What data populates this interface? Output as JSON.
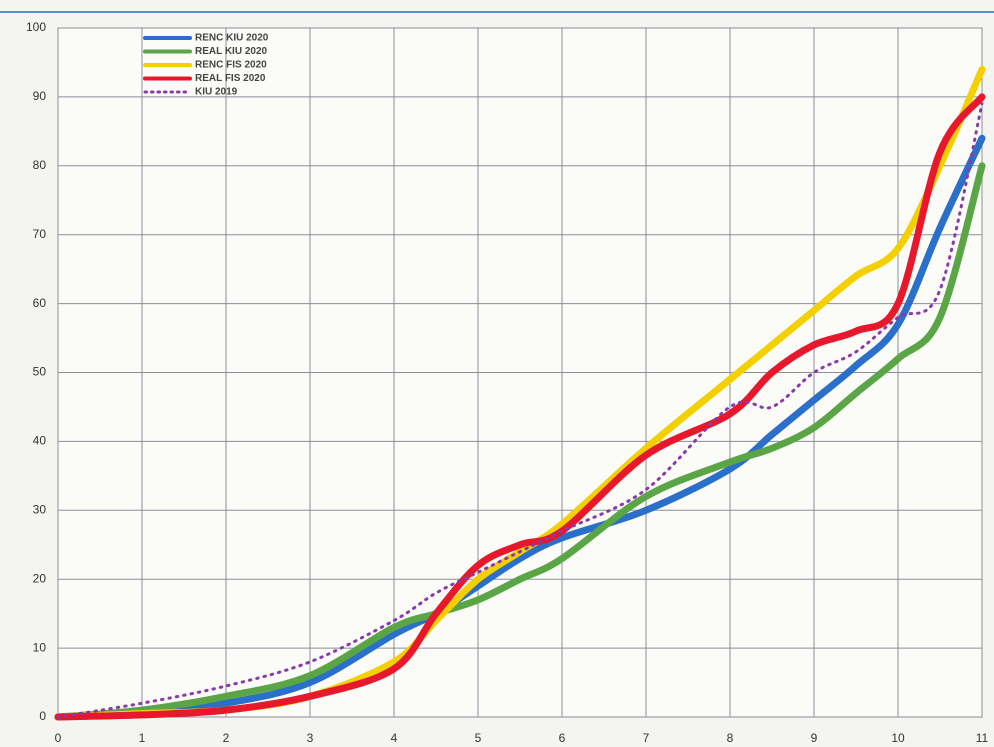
{
  "chart_data": {
    "type": "line",
    "x": [
      0,
      1,
      2,
      3,
      4,
      4.5,
      5,
      5.5,
      6,
      7,
      8,
      8.5,
      9,
      9.5,
      10,
      10.5,
      11
    ],
    "series": [
      {
        "name": "RENC KIU 2020",
        "color": "#2a6fc9",
        "style": "solid",
        "values": [
          0,
          0.5,
          2,
          5,
          12,
          15,
          19,
          23,
          26,
          30,
          36,
          41,
          46,
          51,
          57,
          71,
          84
        ]
      },
      {
        "name": "REAL KIU 2020",
        "color": "#5aa646",
        "style": "solid",
        "values": [
          0,
          1,
          3,
          6,
          13,
          15,
          17,
          20,
          23,
          32,
          37,
          39,
          42,
          47,
          52,
          58,
          80
        ]
      },
      {
        "name": "RENC FIS 2020",
        "color": "#f5d000",
        "style": "solid",
        "values": [
          0,
          0.5,
          1,
          3,
          8,
          14,
          20,
          24,
          28,
          39,
          49,
          54,
          59,
          64,
          68,
          80,
          94
        ]
      },
      {
        "name": "REAL FIS 2020",
        "color": "#e8182c",
        "style": "solid",
        "values": [
          0,
          0.3,
          1,
          3,
          7,
          15,
          22,
          25,
          27,
          38,
          44,
          50,
          54,
          56,
          60,
          82,
          90
        ]
      },
      {
        "name": "KIU 2019",
        "color": "#8a3aa8",
        "style": "dotted",
        "values": [
          0,
          2,
          4.5,
          8,
          14,
          18,
          21,
          24,
          27,
          33,
          45,
          45,
          50,
          53,
          58,
          62,
          89
        ]
      }
    ],
    "xlim": [
      0,
      11
    ],
    "xticks": [
      0,
      1,
      2,
      3,
      4,
      5,
      6,
      7,
      8,
      9,
      10,
      11
    ],
    "ylim": [
      0,
      100
    ],
    "yticks": [
      0,
      10,
      20,
      30,
      40,
      50,
      60,
      70,
      80,
      90,
      100
    ],
    "grid": true,
    "legend": "top-left"
  }
}
